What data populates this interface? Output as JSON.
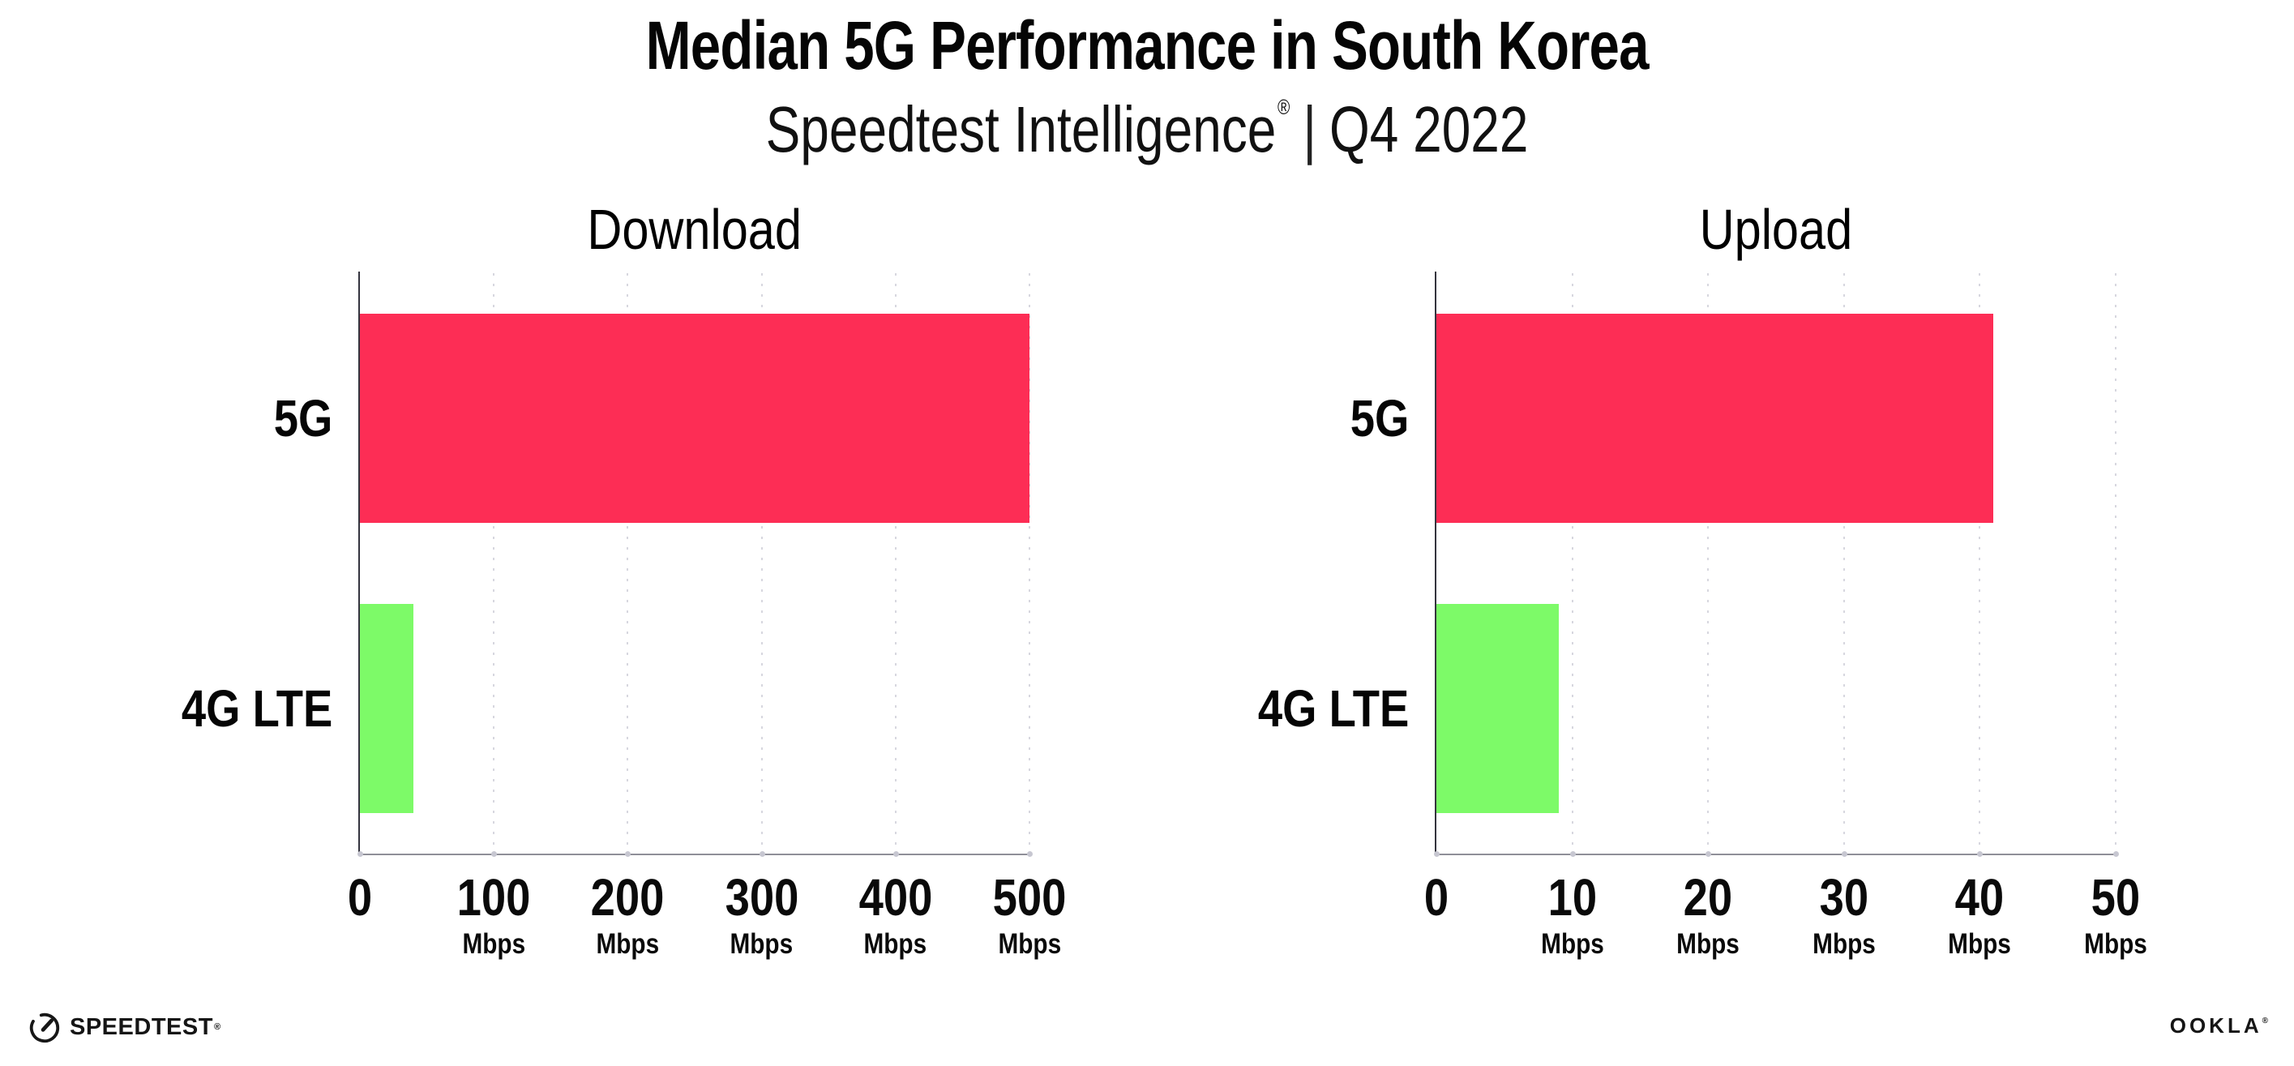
{
  "header": {
    "title": "Median 5G Performance in South Korea",
    "subtitle": {
      "brand": "Speedtest Intelligence",
      "registered_mark": "®",
      "separator": "|",
      "period": "Q4 2022"
    }
  },
  "chart_data": [
    {
      "type": "bar",
      "orientation": "horizontal",
      "title": "Download",
      "categories": [
        "5G",
        "4G LTE"
      ],
      "values": [
        500,
        40
      ],
      "unit": "Mbps",
      "bar_colors": [
        "#fd2d55",
        "#7dfa68"
      ],
      "xlim": [
        0,
        500
      ],
      "xticks": [
        0,
        100,
        200,
        300,
        400,
        500
      ],
      "xtick_unit": "Mbps",
      "grid": "vertical-dotted",
      "legend": "none"
    },
    {
      "type": "bar",
      "orientation": "horizontal",
      "title": "Upload",
      "categories": [
        "5G",
        "4G LTE"
      ],
      "values": [
        41,
        9
      ],
      "unit": "Mbps",
      "bar_colors": [
        "#fd2d55",
        "#7dfa68"
      ],
      "xlim": [
        0,
        50
      ],
      "xticks": [
        0,
        10,
        20,
        30,
        40,
        50
      ],
      "xtick_unit": "Mbps",
      "grid": "vertical-dotted",
      "legend": "none"
    }
  ],
  "footer": {
    "speedtest": {
      "icon": "gauge-icon",
      "label": "SPEEDTEST",
      "trademark": "®"
    },
    "ookla": {
      "label": "OOKLA",
      "trademark": "®"
    }
  },
  "colors": {
    "bar_5g": "#fd2d55",
    "bar_4g_lte": "#7dfa68",
    "y_axis": "#34343e",
    "x_axis": "#8f8f98",
    "gridline": "#d7d7df",
    "text": "#0c0c0c"
  }
}
